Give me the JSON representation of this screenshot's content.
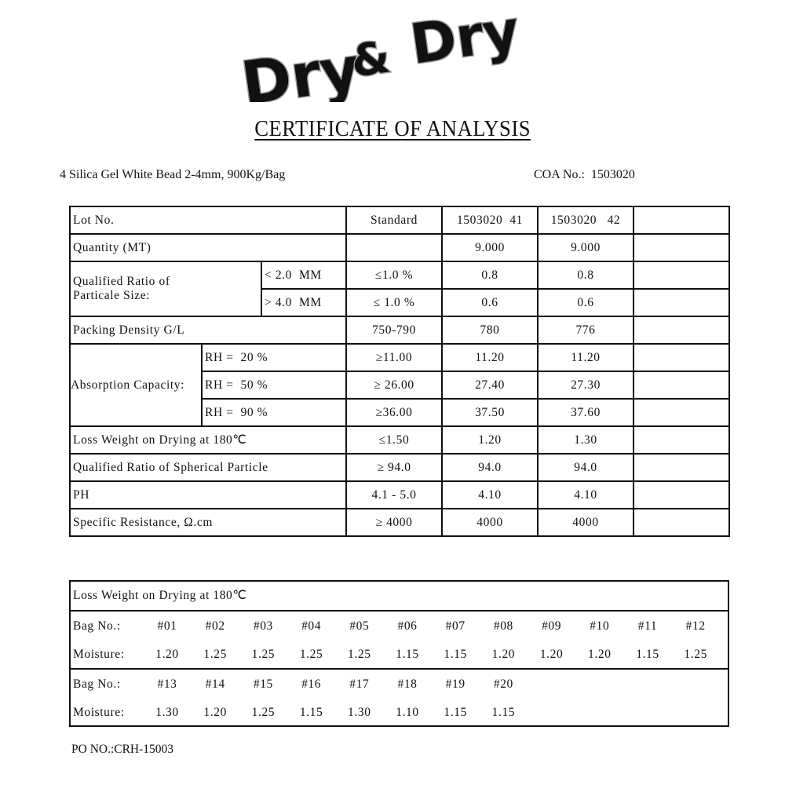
{
  "logo": {
    "text": "Dry & Dry"
  },
  "title": "CERTIFICATE OF ANALYSIS",
  "product": "4 Silica Gel White Bead 2-4mm, 900Kg/Bag",
  "coa": {
    "label": "COA No.:",
    "value": "1503020"
  },
  "table": {
    "lot_label": "Lot No.",
    "standard_label": "Standard",
    "lot1": "1503020  41",
    "lot2": "1503020   42",
    "quantity": {
      "label": "Quantity (MT)",
      "standard": "",
      "v1": "9.000",
      "v2": "9.000"
    },
    "particle": {
      "label_line1": "Qualified Ratio of",
      "label_line2": "Particale Size:",
      "rows": [
        {
          "sub": "< 2.0  MM",
          "standard": "≤1.0 %",
          "v1": "0.8",
          "v2": "0.8"
        },
        {
          "sub": "> 4.0  MM",
          "standard": "≤ 1.0 %",
          "v1": "0.6",
          "v2": "0.6"
        }
      ]
    },
    "density": {
      "label": "Packing Density G/L",
      "standard": "750-790",
      "v1": "780",
      "v2": "776"
    },
    "absorption": {
      "label": "Absorption Capacity:",
      "rows": [
        {
          "sub": "RH =  20 %",
          "standard": "≥11.00",
          "v1": "11.20",
          "v2": "11.20"
        },
        {
          "sub": "RH =  50 %",
          "standard": "≥ 26.00",
          "v1": "27.40",
          "v2": "27.30"
        },
        {
          "sub": "RH =  90 %",
          "standard": "≥36.00",
          "v1": "37.50",
          "v2": "37.60"
        }
      ]
    },
    "loss": {
      "label": "Loss Weight on Drying at 180℃",
      "standard": "≤1.50",
      "v1": "1.20",
      "v2": "1.30"
    },
    "spherical": {
      "label": "Qualified Ratio of Spherical Particle",
      "standard": "≥ 94.0",
      "v1": "94.0",
      "v2": "94.0"
    },
    "ph": {
      "label": "PH",
      "standard": "4.1 - 5.0",
      "v1": "4.10",
      "v2": "4.10"
    },
    "resistance": {
      "label": "Specific Resistance, Ω.cm",
      "standard": "≥ 4000",
      "v1": "4000",
      "v2": "4000"
    }
  },
  "moisture_table": {
    "header": "Loss Weight on Drying at 180℃",
    "bag_label": "Bag No.:",
    "moisture_label": "Moisture:",
    "block1": {
      "bags": [
        "#01",
        "#02",
        "#03",
        "#04",
        "#05",
        "#06",
        "#07",
        "#08",
        "#09",
        "#10",
        "#11",
        "#12"
      ],
      "moisture": [
        "1.20",
        "1.25",
        "1.25",
        "1.25",
        "1.25",
        "1.15",
        "1.15",
        "1.20",
        "1.20",
        "1.20",
        "1.15",
        "1.25"
      ]
    },
    "block2": {
      "bags": [
        "#13",
        "#14",
        "#15",
        "#16",
        "#17",
        "#18",
        "#19",
        "#20"
      ],
      "moisture": [
        "1.30",
        "1.20",
        "1.25",
        "1.15",
        "1.30",
        "1.10",
        "1.15",
        "1.15"
      ]
    }
  },
  "po": "PO NO.:CRH-15003"
}
